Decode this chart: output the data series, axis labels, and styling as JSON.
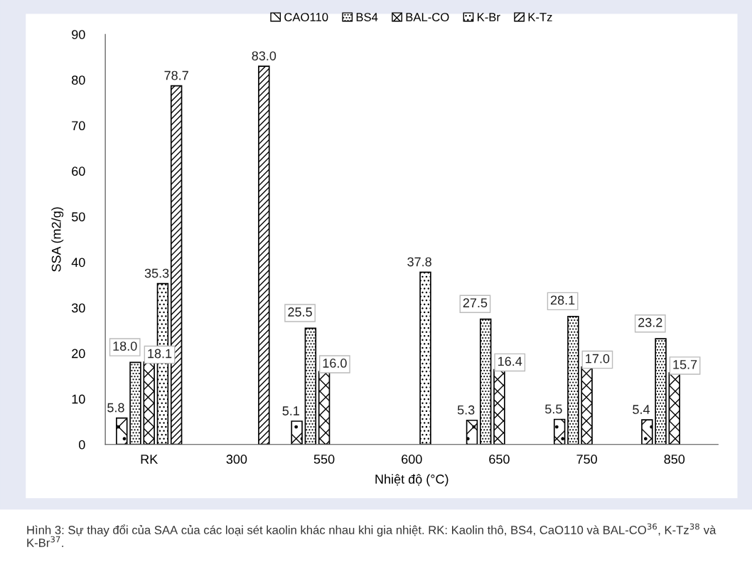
{
  "chart_data": {
    "type": "bar",
    "xlabel": "Nhiệt độ (°C)",
    "ylabel": "SSA (m2/g)",
    "categories": [
      "RK",
      "300",
      "550",
      "600",
      "650",
      "750",
      "850"
    ],
    "series": [
      {
        "name": "CAO110",
        "color": "#000000",
        "values": [
          5.8,
          null,
          5.1,
          null,
          5.3,
          5.5,
          5.4
        ],
        "value_labels": [
          "5.8",
          null,
          "5.1",
          null,
          "5.3",
          "5.5",
          "5.4"
        ]
      },
      {
        "name": "BS4",
        "color": "#000000",
        "values": [
          18.0,
          null,
          25.5,
          null,
          27.5,
          28.1,
          23.2
        ],
        "value_labels": [
          "18.0",
          null,
          "25.5",
          null,
          "27.5",
          "28.1",
          "23.2"
        ]
      },
      {
        "name": "BAL-CO",
        "color": "#000000",
        "values": [
          18.1,
          null,
          16.0,
          null,
          16.4,
          17.0,
          15.7
        ],
        "value_labels": [
          "18.1",
          null,
          "16.0",
          null,
          "16.4",
          "17.0",
          "15.7"
        ]
      },
      {
        "name": "K-Br",
        "color": "#000000",
        "values": [
          35.3,
          null,
          null,
          37.8,
          null,
          null,
          null
        ],
        "value_labels": [
          "35.3",
          null,
          null,
          "37.8",
          null,
          null,
          null
        ]
      },
      {
        "name": "K-Tz",
        "color": "#000000",
        "values": [
          78.7,
          83.0,
          null,
          null,
          null,
          null,
          null
        ],
        "value_labels": [
          "78.7",
          "83.0",
          null,
          null,
          null,
          null,
          null
        ]
      }
    ],
    "ylim": [
      0,
      90
    ],
    "yticks": [
      0,
      10,
      20,
      30,
      40,
      50,
      60,
      70,
      80,
      90
    ],
    "legend": "top",
    "annotations": [
      "Hình 3: Sự thay đổi của SAA của các loại sét kaolin khác nhau khi gia nhiệt. RK: Kaolin thô, BS4, CaO110 và BAL-CO$^{36}$, K-Tz$^{38}$ và K-Br$^{37}$."
    ]
  }
}
